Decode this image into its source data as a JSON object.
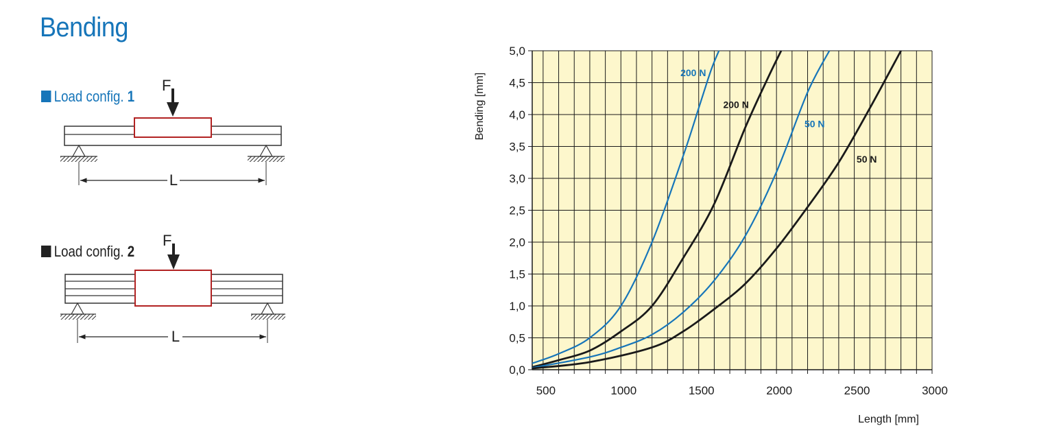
{
  "page_title": "Bending",
  "configs": [
    {
      "label": "Load config. ",
      "number": "1",
      "color": "#1675b9",
      "force_label": "F",
      "span_label": "L"
    },
    {
      "label": "Load config. ",
      "number": "2",
      "color": "#222222",
      "force_label": "F",
      "span_label": "L"
    }
  ],
  "chart_data": {
    "type": "line",
    "xlabel": "Length [mm]",
    "ylabel": "Bending [mm]",
    "xlim": [
      430,
      3000
    ],
    "ylim": [
      0,
      5.0
    ],
    "x_ticks": [
      "500",
      "1000",
      "1500",
      "2000",
      "2500",
      "3000"
    ],
    "y_ticks": [
      "0,0",
      "0,5",
      "1,0",
      "1,5",
      "2,0",
      "2,5",
      "3,0",
      "3,5",
      "4,0",
      "4,5",
      "5,0"
    ],
    "grid": true,
    "background": "#fdf7cc",
    "series": [
      {
        "name": "200 N",
        "config": "1",
        "color": "#1675b9",
        "x": [
          430,
          600,
          800,
          1000,
          1200,
          1400,
          1500,
          1580,
          1630
        ],
        "y": [
          0.1,
          0.25,
          0.5,
          1.0,
          2.0,
          3.35,
          4.1,
          4.7,
          5.0
        ]
      },
      {
        "name": "200 N",
        "config": "2",
        "color": "#1a1a1a",
        "x": [
          430,
          600,
          800,
          1000,
          1200,
          1400,
          1600,
          1800,
          1950,
          2030
        ],
        "y": [
          0.04,
          0.15,
          0.3,
          0.6,
          1.0,
          1.75,
          2.6,
          3.8,
          4.6,
          5.0
        ]
      },
      {
        "name": "50 N",
        "config": "1",
        "color": "#1675b9",
        "x": [
          430,
          800,
          1000,
          1200,
          1400,
          1600,
          1800,
          2000,
          2200,
          2340
        ],
        "y": [
          0.03,
          0.2,
          0.35,
          0.55,
          0.9,
          1.4,
          2.1,
          3.1,
          4.35,
          5.0
        ]
      },
      {
        "name": "50 N",
        "config": "2",
        "color": "#1a1a1a",
        "x": [
          430,
          800,
          1200,
          1400,
          1600,
          1800,
          2000,
          2200,
          2400,
          2600,
          2800
        ],
        "y": [
          0.02,
          0.12,
          0.35,
          0.6,
          0.95,
          1.35,
          1.9,
          2.55,
          3.25,
          4.1,
          5.0
        ]
      }
    ],
    "annotations": [
      {
        "text": "200 N",
        "x": 1465,
        "y": 4.6,
        "color": "#1675b9"
      },
      {
        "text": "200 N",
        "x": 1740,
        "y": 4.1,
        "color": "#1a1a1a"
      },
      {
        "text": "50 N",
        "x": 2245,
        "y": 3.8,
        "color": "#1675b9"
      },
      {
        "text": "50 N",
        "x": 2580,
        "y": 3.25,
        "color": "#1a1a1a"
      }
    ]
  }
}
